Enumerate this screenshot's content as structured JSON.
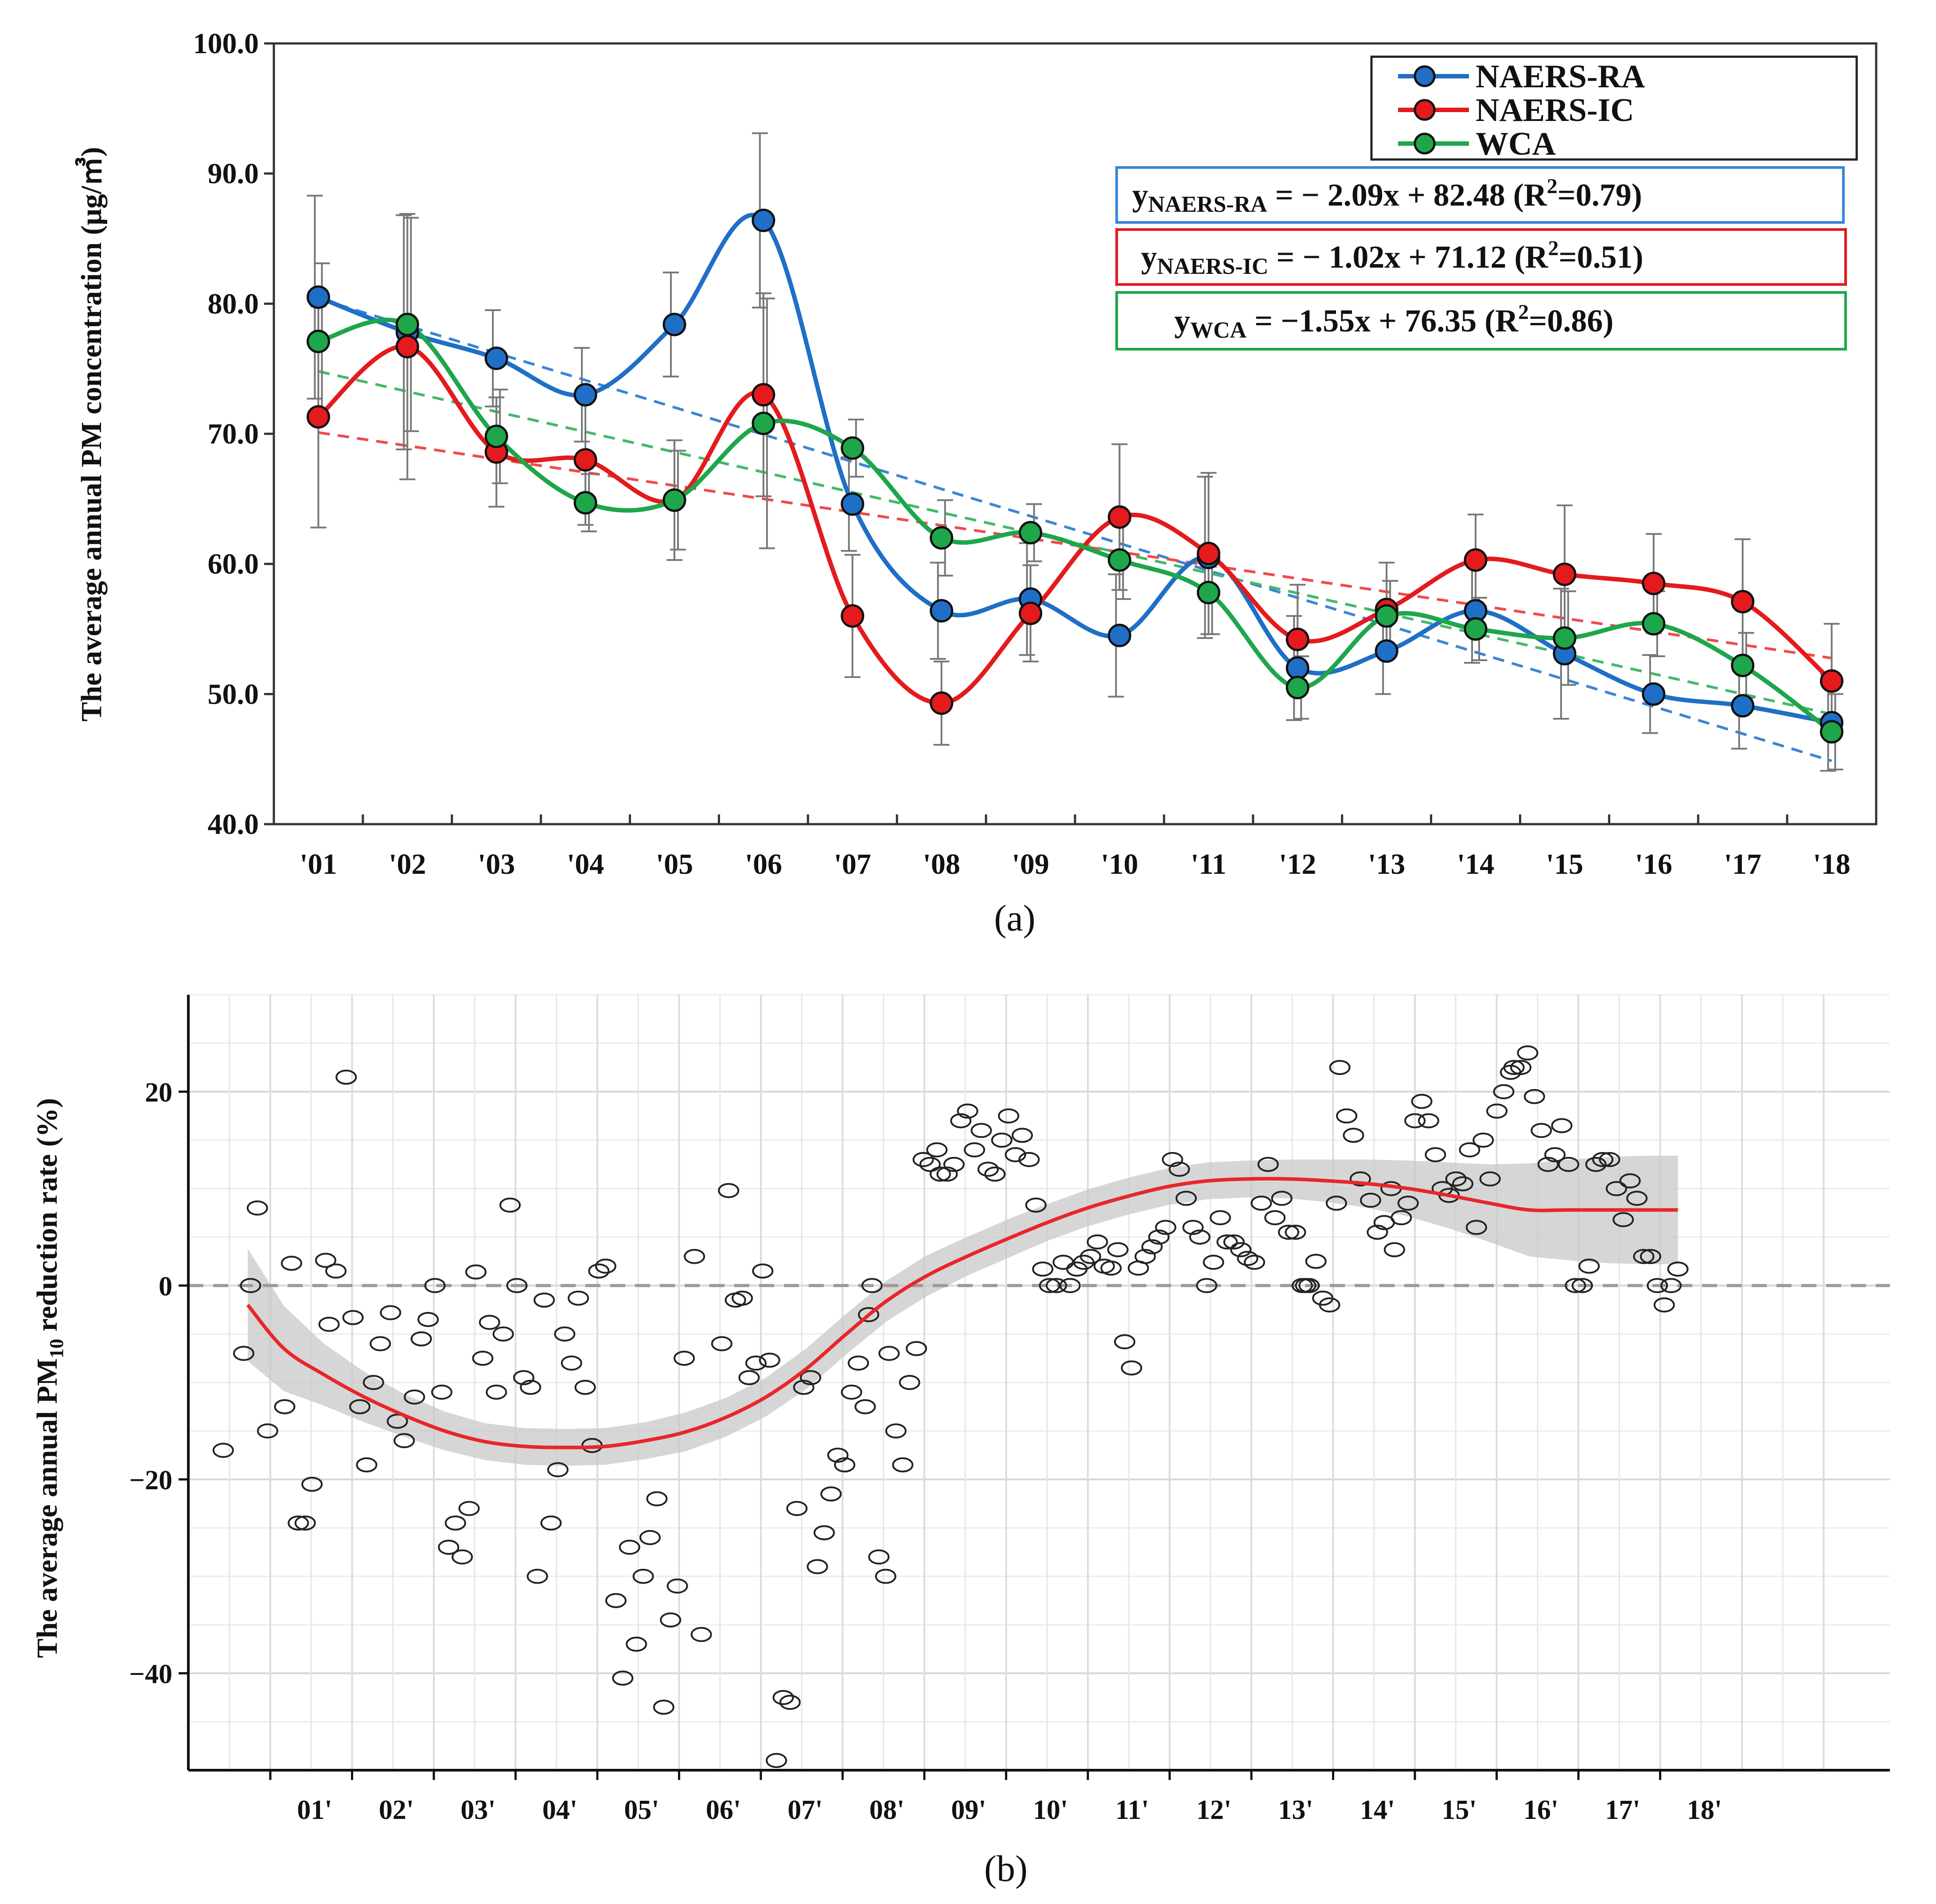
{
  "chart_data": [
    {
      "type": "line",
      "panel": "a",
      "caption": "(a)",
      "ylabel": "The average annual PM concentration (μg/㎥)",
      "xlabel": "",
      "ylim": [
        40,
        100
      ],
      "yticks": [
        "100.0",
        "90.0",
        "80.0",
        "70.0",
        "60.0",
        "50.0",
        "40.0"
      ],
      "categories": [
        "'01",
        "'02",
        "'03",
        "'04",
        "'05",
        "'06",
        "'07",
        "'08",
        "'09",
        "'10",
        "'11",
        "'12",
        "'13",
        "'14",
        "'15",
        "'16",
        "'17",
        "'18"
      ],
      "series": [
        {
          "name": "NAERS-RA",
          "color": "#1f6fc6",
          "values": [
            80.5,
            77.8,
            75.8,
            73.0,
            78.4,
            86.4,
            64.6,
            56.4,
            57.3,
            54.5,
            60.5,
            52.0,
            53.3,
            56.4,
            53.1,
            50.0,
            49.1,
            47.8
          ],
          "errors": [
            7.8,
            9.0,
            3.7,
            3.6,
            4.0,
            6.7,
            3.6,
            3.7,
            4.3,
            4.7,
            6.2,
            4.0,
            3.3,
            4.0,
            5.0,
            3.0,
            3.3,
            3.7
          ],
          "trend": {
            "slope": -2.09,
            "intercept": 82.48,
            "r2": 0.79,
            "label_main": "y",
            "label_sub": "NAERS-RA",
            "label_rest": " = − 2.09x + 82.48 (R",
            "label_end": "=0.79)"
          }
        },
        {
          "name": "NAERS-IC",
          "color": "#e41a1c",
          "values": [
            71.3,
            76.7,
            68.6,
            68.0,
            64.9,
            73.0,
            56.0,
            49.3,
            56.2,
            63.6,
            60.8,
            54.2,
            56.5,
            60.3,
            59.2,
            58.5,
            57.1,
            51.0
          ],
          "errors": [
            8.5,
            10.2,
            4.2,
            5.0,
            4.6,
            7.8,
            4.7,
            3.2,
            3.7,
            5.6,
            6.2,
            4.2,
            3.6,
            3.5,
            5.3,
            3.8,
            4.8,
            4.4
          ],
          "trend": {
            "slope": -1.02,
            "intercept": 71.12,
            "r2": 0.51,
            "label_main": "y",
            "label_sub": "NAERS-IC",
            "label_rest": " = − 1.02x + 71.12 (R",
            "label_end": "=0.51)"
          }
        },
        {
          "name": "WCA",
          "color": "#1ea64b",
          "values": [
            77.1,
            78.4,
            69.8,
            64.7,
            64.9,
            70.8,
            68.9,
            62.0,
            62.4,
            60.3,
            57.8,
            50.5,
            56.0,
            55.0,
            54.3,
            55.4,
            52.2,
            47.1
          ],
          "errors": [
            6.0,
            8.2,
            3.6,
            2.2,
            3.8,
            9.6,
            2.2,
            2.9,
            2.2,
            3.0,
            3.2,
            2.4,
            2.7,
            2.4,
            3.6,
            2.5,
            2.5,
            2.9
          ],
          "trend": {
            "slope": -1.55,
            "intercept": 76.35,
            "r2": 0.86,
            "label_main": "y",
            "label_sub": "WCA",
            "label_rest": " = −1.55x + 76.35 (R",
            "label_end": "=0.86)"
          }
        }
      ],
      "legend": [
        "NAERS-RA",
        "NAERS-IC",
        "WCA"
      ],
      "superscript": "2"
    },
    {
      "type": "scatter",
      "panel": "b",
      "caption": "(b)",
      "ylabel_main": "The average annual PM",
      "ylabel_sub": "10",
      "ylabel_end": " reduction rate (%)",
      "xlabel": "",
      "ylim": [
        -50,
        30
      ],
      "yticks": [
        20,
        0,
        -20,
        -40
      ],
      "ytick_labels": [
        "20",
        "0",
        "−20",
        "−40"
      ],
      "categories": [
        "01'",
        "02'",
        "03'",
        "04'",
        "05'",
        "06'",
        "07'",
        "08'",
        "09'",
        "10'",
        "11'",
        "12'",
        "13'",
        "14'",
        "15'",
        "16'",
        "17'",
        "18'"
      ],
      "smooth": {
        "x": [
          0.05,
          0.5,
          1.0,
          1.5,
          2.0,
          2.5,
          3.0,
          3.5,
          4.0,
          4.5,
          5.0,
          5.5,
          6.0,
          6.5,
          7.0,
          7.5,
          8.0,
          8.5,
          9.0,
          9.5,
          10.0,
          10.5,
          11.0,
          11.5,
          12.0,
          12.5,
          13.0,
          13.5,
          14.0,
          14.5,
          15.0,
          15.5,
          16.0,
          16.5,
          17.0,
          17.5,
          17.85
        ],
        "y": [
          -2.0,
          -6.5,
          -9.2,
          -11.5,
          -13.4,
          -15.0,
          -16.1,
          -16.6,
          -16.7,
          -16.6,
          -16.0,
          -15.1,
          -13.6,
          -11.5,
          -8.6,
          -5.0,
          -1.6,
          1.0,
          3.0,
          4.8,
          6.5,
          8.0,
          9.2,
          10.2,
          10.8,
          11.0,
          11.0,
          10.8,
          10.5,
          10.0,
          9.3,
          8.5,
          7.8,
          7.8,
          7.8,
          7.8,
          7.8
        ],
        "ci": [
          5.8,
          4.4,
          3.2,
          2.6,
          2.2,
          2.0,
          1.9,
          1.9,
          1.9,
          1.9,
          1.9,
          2.0,
          2.0,
          2.0,
          2.1,
          2.1,
          2.1,
          2.1,
          2.0,
          2.0,
          1.9,
          1.9,
          1.9,
          1.9,
          1.9,
          1.9,
          2.0,
          2.2,
          2.5,
          2.9,
          3.4,
          4.0,
          4.8,
          5.2,
          5.5,
          5.6,
          5.6
        ]
      },
      "points": [
        [
          -0.3,
          -17
        ],
        [
          0.0,
          -7
        ],
        [
          0.1,
          0
        ],
        [
          0.2,
          8
        ],
        [
          0.35,
          -15
        ],
        [
          0.6,
          -12.5
        ],
        [
          0.7,
          2.3
        ],
        [
          0.8,
          -24.5
        ],
        [
          0.9,
          -24.5
        ],
        [
          1.0,
          -20.5
        ],
        [
          1.2,
          2.6
        ],
        [
          1.25,
          -4
        ],
        [
          1.35,
          1.5
        ],
        [
          1.5,
          21.5
        ],
        [
          1.6,
          -3.3
        ],
        [
          1.7,
          -12.5
        ],
        [
          1.8,
          -18.5
        ],
        [
          1.9,
          -10
        ],
        [
          2.0,
          -6
        ],
        [
          2.15,
          -2.8
        ],
        [
          2.25,
          -14
        ],
        [
          2.35,
          -16
        ],
        [
          2.5,
          -11.5
        ],
        [
          2.6,
          -5.5
        ],
        [
          2.7,
          -3.5
        ],
        [
          2.8,
          0
        ],
        [
          2.9,
          -11
        ],
        [
          3.0,
          -27
        ],
        [
          3.1,
          -24.5
        ],
        [
          3.2,
          -28
        ],
        [
          3.3,
          -23
        ],
        [
          3.4,
          1.4
        ],
        [
          3.5,
          -7.5
        ],
        [
          3.6,
          -3.8
        ],
        [
          3.7,
          -11
        ],
        [
          3.8,
          -5
        ],
        [
          3.9,
          8.3
        ],
        [
          4.0,
          0
        ],
        [
          4.1,
          -9.5
        ],
        [
          4.2,
          -10.5
        ],
        [
          4.3,
          -30
        ],
        [
          4.4,
          -1.5
        ],
        [
          4.5,
          -24.5
        ],
        [
          4.6,
          -19
        ],
        [
          4.7,
          -5
        ],
        [
          4.8,
          -8
        ],
        [
          4.9,
          -1.3
        ],
        [
          5.0,
          -10.5
        ],
        [
          5.1,
          -16.5
        ],
        [
          5.2,
          1.5
        ],
        [
          5.3,
          2
        ],
        [
          5.45,
          -32.5
        ],
        [
          5.55,
          -40.5
        ],
        [
          5.65,
          -27
        ],
        [
          5.75,
          -37
        ],
        [
          5.85,
          -30
        ],
        [
          5.95,
          -26
        ],
        [
          6.05,
          -22
        ],
        [
          6.15,
          -43.5
        ],
        [
          6.25,
          -34.5
        ],
        [
          6.35,
          -31
        ],
        [
          6.45,
          -7.5
        ],
        [
          6.6,
          3
        ],
        [
          6.7,
          -36
        ],
        [
          7.0,
          -6
        ],
        [
          7.1,
          9.8
        ],
        [
          7.2,
          -1.5
        ],
        [
          7.3,
          -1.3
        ],
        [
          7.4,
          -9.5
        ],
        [
          7.5,
          -8
        ],
        [
          7.6,
          1.5
        ],
        [
          7.7,
          -7.7
        ],
        [
          7.8,
          -49
        ],
        [
          7.9,
          -42.5
        ],
        [
          8.0,
          -43
        ],
        [
          8.1,
          -23
        ],
        [
          8.2,
          -10.5
        ],
        [
          8.3,
          -9.5
        ],
        [
          8.4,
          -29
        ],
        [
          8.5,
          -25.5
        ],
        [
          8.6,
          -21.5
        ],
        [
          8.7,
          -17.5
        ],
        [
          8.8,
          -18.5
        ],
        [
          8.9,
          -11
        ],
        [
          9.0,
          -8
        ],
        [
          9.1,
          -12.5
        ],
        [
          9.15,
          -3
        ],
        [
          9.2,
          0
        ],
        [
          9.3,
          -28
        ],
        [
          9.4,
          -30
        ],
        [
          9.45,
          -7
        ],
        [
          9.55,
          -15
        ],
        [
          9.65,
          -18.5
        ],
        [
          9.75,
          -10
        ],
        [
          9.85,
          -6.5
        ],
        [
          9.95,
          13
        ],
        [
          10.05,
          12.5
        ],
        [
          10.15,
          14
        ],
        [
          10.2,
          11.5
        ],
        [
          10.3,
          11.5
        ],
        [
          10.4,
          12.5
        ],
        [
          10.5,
          17
        ],
        [
          10.6,
          18
        ],
        [
          10.7,
          14
        ],
        [
          10.8,
          16
        ],
        [
          10.9,
          12
        ],
        [
          11.0,
          11.5
        ],
        [
          11.1,
          15
        ],
        [
          11.2,
          17.5
        ],
        [
          11.3,
          13.5
        ],
        [
          11.4,
          15.5
        ],
        [
          11.5,
          13
        ],
        [
          11.6,
          8.3
        ],
        [
          11.7,
          1.7
        ],
        [
          11.8,
          0
        ],
        [
          11.9,
          0
        ],
        [
          12.0,
          2.4
        ],
        [
          12.1,
          0
        ],
        [
          12.2,
          1.7
        ],
        [
          12.3,
          2.4
        ],
        [
          12.4,
          3
        ],
        [
          12.5,
          4.5
        ],
        [
          12.6,
          2
        ],
        [
          12.7,
          1.8
        ],
        [
          12.8,
          3.7
        ],
        [
          12.9,
          -5.8
        ],
        [
          13.0,
          -8.5
        ],
        [
          13.1,
          1.8
        ],
        [
          13.2,
          3
        ],
        [
          13.3,
          4
        ],
        [
          13.4,
          5
        ],
        [
          13.5,
          6
        ],
        [
          13.6,
          13
        ],
        [
          13.7,
          12
        ],
        [
          13.8,
          9
        ],
        [
          13.9,
          6
        ],
        [
          14.0,
          5
        ],
        [
          14.1,
          0
        ],
        [
          14.2,
          2.4
        ],
        [
          14.3,
          7
        ],
        [
          14.4,
          4.5
        ],
        [
          14.5,
          4.5
        ],
        [
          14.6,
          3.7
        ],
        [
          14.7,
          2.8
        ],
        [
          14.8,
          2.4
        ],
        [
          14.9,
          8.5
        ],
        [
          15.0,
          12.5
        ],
        [
          15.1,
          7
        ],
        [
          15.2,
          9
        ],
        [
          15.3,
          5.5
        ],
        [
          15.4,
          5.5
        ],
        [
          15.5,
          0
        ],
        [
          15.55,
          0
        ],
        [
          15.6,
          0
        ],
        [
          15.7,
          2.5
        ],
        [
          15.8,
          -1.3
        ],
        [
          15.9,
          -2
        ],
        [
          16.0,
          8.5
        ],
        [
          16.05,
          22.5
        ],
        [
          16.15,
          17.5
        ],
        [
          16.25,
          15.5
        ],
        [
          16.35,
          11
        ],
        [
          16.5,
          8.8
        ],
        [
          16.6,
          5.5
        ],
        [
          16.7,
          6.5
        ],
        [
          16.8,
          10
        ],
        [
          16.85,
          3.7
        ],
        [
          16.95,
          7
        ],
        [
          17.05,
          8.5
        ],
        [
          17.15,
          17
        ],
        [
          17.25,
          19
        ],
        [
          17.35,
          17
        ],
        [
          17.45,
          13.5
        ],
        [
          17.55,
          10
        ],
        [
          17.65,
          9.3
        ],
        [
          17.75,
          11
        ],
        [
          17.85,
          10.5
        ],
        [
          17.95,
          14
        ],
        [
          18.05,
          6
        ],
        [
          18.15,
          15
        ],
        [
          18.25,
          11
        ],
        [
          18.35,
          18
        ],
        [
          18.45,
          20
        ],
        [
          18.55,
          22
        ],
        [
          18.6,
          22.5
        ],
        [
          18.7,
          22.5
        ],
        [
          18.8,
          24
        ],
        [
          18.9,
          19.5
        ],
        [
          19.0,
          16
        ],
        [
          19.1,
          12.5
        ],
        [
          19.2,
          13.5
        ],
        [
          19.3,
          16.5
        ],
        [
          19.4,
          12.5
        ],
        [
          19.5,
          0
        ],
        [
          19.6,
          0
        ],
        [
          19.7,
          2
        ],
        [
          19.8,
          12.5
        ],
        [
          19.9,
          13
        ],
        [
          20.0,
          13
        ],
        [
          20.1,
          10
        ],
        [
          20.2,
          6.8
        ],
        [
          20.3,
          10.8
        ],
        [
          20.4,
          9
        ],
        [
          20.5,
          3
        ],
        [
          20.6,
          3
        ],
        [
          20.7,
          0
        ],
        [
          20.8,
          -2
        ],
        [
          20.9,
          0
        ],
        [
          21.0,
          1.7
        ]
      ]
    }
  ]
}
